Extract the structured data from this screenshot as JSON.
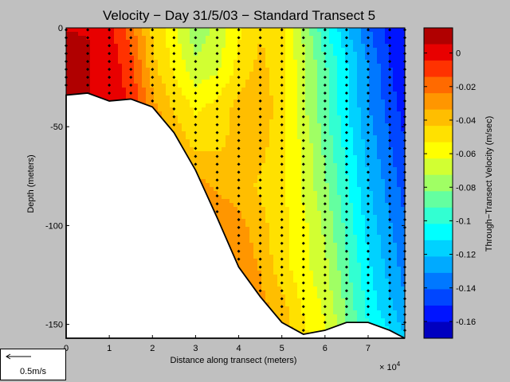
{
  "chart_data": {
    "type": "heatmap",
    "title": "Velocity − Day 31/5/03 − Standard Transect 5",
    "xlabel": "Distance along transect (meters)",
    "ylabel": "Depth (meters)",
    "x_exponent": "× 10",
    "x_exponent_power": "4",
    "xlim": [
      0,
      78500
    ],
    "ylim": [
      -157,
      0
    ],
    "xticks": [
      0,
      10000,
      20000,
      30000,
      40000,
      50000,
      60000,
      70000
    ],
    "xtick_labels": [
      "0",
      "1",
      "2",
      "3",
      "4",
      "5",
      "6",
      "7"
    ],
    "yticks": [
      0,
      -50,
      -100,
      -150
    ],
    "ytick_labels": [
      "0",
      "-50",
      "-100",
      "-150"
    ],
    "colorbar": {
      "label": "Through−Transect Velocity (m/sec)",
      "range": [
        -0.17,
        0.015
      ],
      "ticks": [
        0,
        -0.02,
        -0.04,
        -0.06,
        -0.08,
        -0.1,
        -0.12,
        -0.14,
        -0.16
      ],
      "tick_labels": [
        "0",
        "-0.02",
        "-0.04",
        "-0.06",
        "-0.08",
        "-0.1",
        "-0.12",
        "-0.14",
        "-0.16"
      ],
      "levels": [
        "#b00000",
        "#e80000",
        "#ff3200",
        "#ff6a00",
        "#ff9600",
        "#ffbe00",
        "#ffe100",
        "#ffff00",
        "#d2ff32",
        "#a0ff64",
        "#64ffa0",
        "#32ffd2",
        "#00ffff",
        "#00d2ff",
        "#00aaff",
        "#0078ff",
        "#0046ff",
        "#0014ff",
        "#0000c0"
      ]
    },
    "bottom": {
      "x": [
        0,
        5000,
        10000,
        15000,
        20000,
        25000,
        30000,
        35000,
        40000,
        45000,
        50000,
        55000,
        60000,
        65000,
        70000,
        75000,
        78500
      ],
      "depth": [
        -34,
        -33,
        -37,
        -36,
        -40,
        -53,
        -72,
        -96,
        -121,
        -136,
        -149,
        -155,
        -153,
        -149,
        -149,
        -153,
        -157
      ]
    },
    "stations_x": [
      0,
      5000,
      10000,
      15000,
      20000,
      25000,
      30000,
      35000,
      40000,
      45000,
      50000,
      55000,
      60000,
      65000,
      70000,
      75000,
      78500
    ],
    "velocity_field": {
      "x": [
        0,
        5000,
        10000,
        15000,
        20000,
        25000,
        30000,
        35000,
        40000,
        45000,
        50000,
        55000,
        60000,
        65000,
        70000,
        75000,
        78500
      ],
      "z": [
        0,
        -20,
        -40,
        -60,
        -80,
        -100,
        -120,
        -140,
        -157
      ],
      "v": [
        [
          0.005,
          0.005,
          0.0,
          -0.02,
          -0.045,
          -0.06,
          -0.08,
          -0.07,
          -0.055,
          -0.045,
          -0.05,
          -0.075,
          -0.1,
          -0.12,
          -0.14,
          -0.155,
          -0.16
        ],
        [
          0.008,
          0.006,
          0.002,
          -0.01,
          -0.04,
          -0.055,
          -0.07,
          -0.065,
          -0.05,
          -0.04,
          -0.05,
          -0.07,
          -0.09,
          -0.11,
          -0.13,
          -0.15,
          -0.16
        ],
        [
          0.008,
          0.006,
          0.002,
          -0.005,
          -0.03,
          -0.045,
          -0.055,
          -0.05,
          -0.04,
          -0.035,
          -0.05,
          -0.07,
          -0.09,
          -0.11,
          -0.13,
          -0.145,
          -0.155
        ],
        [
          0.0,
          0.0,
          0.0,
          0.0,
          -0.02,
          -0.035,
          -0.045,
          -0.045,
          -0.04,
          -0.04,
          -0.05,
          -0.065,
          -0.085,
          -0.105,
          -0.125,
          -0.14,
          -0.15
        ],
        [
          0.0,
          0.0,
          0.0,
          0.0,
          0.0,
          -0.025,
          -0.03,
          -0.035,
          -0.04,
          -0.045,
          -0.05,
          -0.065,
          -0.08,
          -0.1,
          -0.12,
          -0.135,
          -0.145
        ],
        [
          0.0,
          0.0,
          0.0,
          0.0,
          0.0,
          0.0,
          -0.02,
          -0.025,
          -0.03,
          -0.04,
          -0.05,
          -0.06,
          -0.075,
          -0.095,
          -0.115,
          -0.13,
          -0.14
        ],
        [
          0.0,
          0.0,
          0.0,
          0.0,
          0.0,
          0.0,
          0.0,
          -0.02,
          -0.025,
          -0.035,
          -0.05,
          -0.06,
          -0.07,
          -0.09,
          -0.11,
          -0.125,
          -0.135
        ],
        [
          0.0,
          0.0,
          0.0,
          0.0,
          0.0,
          0.0,
          0.0,
          -0.015,
          -0.02,
          -0.03,
          -0.04,
          -0.055,
          -0.065,
          -0.085,
          -0.105,
          -0.12,
          -0.13
        ],
        [
          0.0,
          0.0,
          0.0,
          0.0,
          0.0,
          0.0,
          0.0,
          0.0,
          -0.02,
          -0.025,
          -0.035,
          -0.05,
          -0.06,
          -0.08,
          -0.1,
          -0.11,
          -0.12
        ]
      ]
    },
    "scale_arrow": {
      "label": "0.5m/s"
    }
  }
}
